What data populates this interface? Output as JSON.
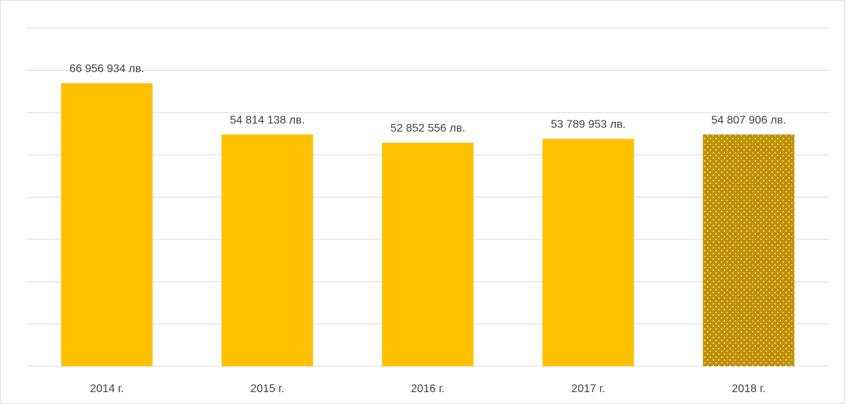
{
  "chart_data": {
    "type": "bar",
    "categories": [
      "2014 г.",
      "2015 г.",
      "2016 г.",
      "2017 г.",
      "2018 г."
    ],
    "values": [
      66956934,
      54814138,
      52852556,
      53789953,
      54807906
    ],
    "value_labels": [
      "66 956 934 лв.",
      "54 814 138 лв.",
      "52 852 556 лв.",
      "53 789 953 лв.",
      "54 807 906 лв."
    ],
    "colors": [
      "#ffc000",
      "#ffc000",
      "#ffc000",
      "#ffc000",
      "#bf9000"
    ],
    "patterned": [
      false,
      false,
      false,
      false,
      true
    ],
    "ylim": [
      0,
      80000000
    ],
    "yticks": [
      0,
      10000000,
      20000000,
      30000000,
      40000000,
      50000000,
      60000000,
      70000000,
      80000000
    ],
    "grid": true
  }
}
